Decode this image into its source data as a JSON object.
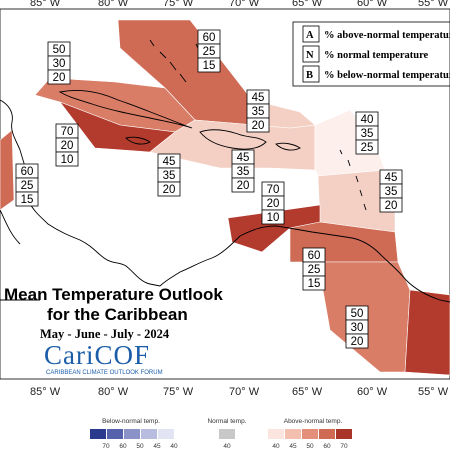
{
  "title": {
    "line1": "Mean Temperature Outlook",
    "line2": "for the Caribbean",
    "period": "May - June - July - 2024"
  },
  "logo": {
    "name": "CariCOF",
    "tagline": "CARIBBEAN CLIMATE OUTLOOK FORUM"
  },
  "legend": [
    {
      "key": "A",
      "text": "% above-normal temperature"
    },
    {
      "key": "N",
      "text": "% normal temperature"
    },
    {
      "key": "B",
      "text": "% below-normal temperature"
    }
  ],
  "longitudes": [
    "85° W",
    "80° W",
    "75° W",
    "70° W",
    "65° W",
    "60° W",
    "55° W"
  ],
  "regions": [
    {
      "name": "bahamas",
      "A": "60",
      "N": "25",
      "B": "15",
      "fill": "#cf6a55"
    },
    {
      "name": "cuba",
      "A": "50",
      "N": "30",
      "B": "20",
      "fill": "#d97d67"
    },
    {
      "name": "jamaica-cayman",
      "A": "70",
      "N": "20",
      "B": "10",
      "fill": "#b23b2e"
    },
    {
      "name": "belize",
      "A": "60",
      "N": "25",
      "B": "15",
      "fill": "#cf6a55"
    },
    {
      "name": "hispaniola",
      "A": "45",
      "N": "35",
      "B": "20",
      "fill": "#f3cfc4"
    },
    {
      "name": "caribbean-sea-north",
      "A": "45",
      "N": "35",
      "B": "20",
      "fill": "#f3cfc4"
    },
    {
      "name": "turks-caicos",
      "A": "45",
      "N": "35",
      "B": "20",
      "fill": "#f3cfc4"
    },
    {
      "name": "leeward-islands",
      "A": "40",
      "N": "35",
      "B": "25",
      "fill": "#fdf0ec"
    },
    {
      "name": "windward-islands",
      "A": "45",
      "N": "35",
      "B": "20",
      "fill": "#f3cfc4"
    },
    {
      "name": "colombia-coast",
      "A": "70",
      "N": "20",
      "B": "10",
      "fill": "#b23b2e"
    },
    {
      "name": "venezuela",
      "A": "60",
      "N": "25",
      "B": "15",
      "fill": "#cf6a55"
    },
    {
      "name": "guyana",
      "A": "50",
      "N": "30",
      "B": "20",
      "fill": "#d97d67"
    },
    {
      "name": "suriname",
      "fill": "#b23b2e"
    }
  ],
  "scale": {
    "below_label": "Below-normal temp.",
    "normal_label": "Normal temp.",
    "above_label": "Above-normal temp.",
    "below_ticks": [
      "70",
      "60",
      "50",
      "45",
      "40"
    ],
    "normal_ticks": [
      "40"
    ],
    "above_ticks": [
      "40",
      "45",
      "50",
      "60",
      "70"
    ],
    "below_colors": [
      "#2b3a8c",
      "#5561ab",
      "#8a92c8",
      "#b8bde0",
      "#e2e4f3"
    ],
    "normal_color": "#c8c8c8",
    "above_colors": [
      "#fbe5de",
      "#f3bfae",
      "#e48f79",
      "#cf6a55",
      "#a8342a"
    ]
  }
}
